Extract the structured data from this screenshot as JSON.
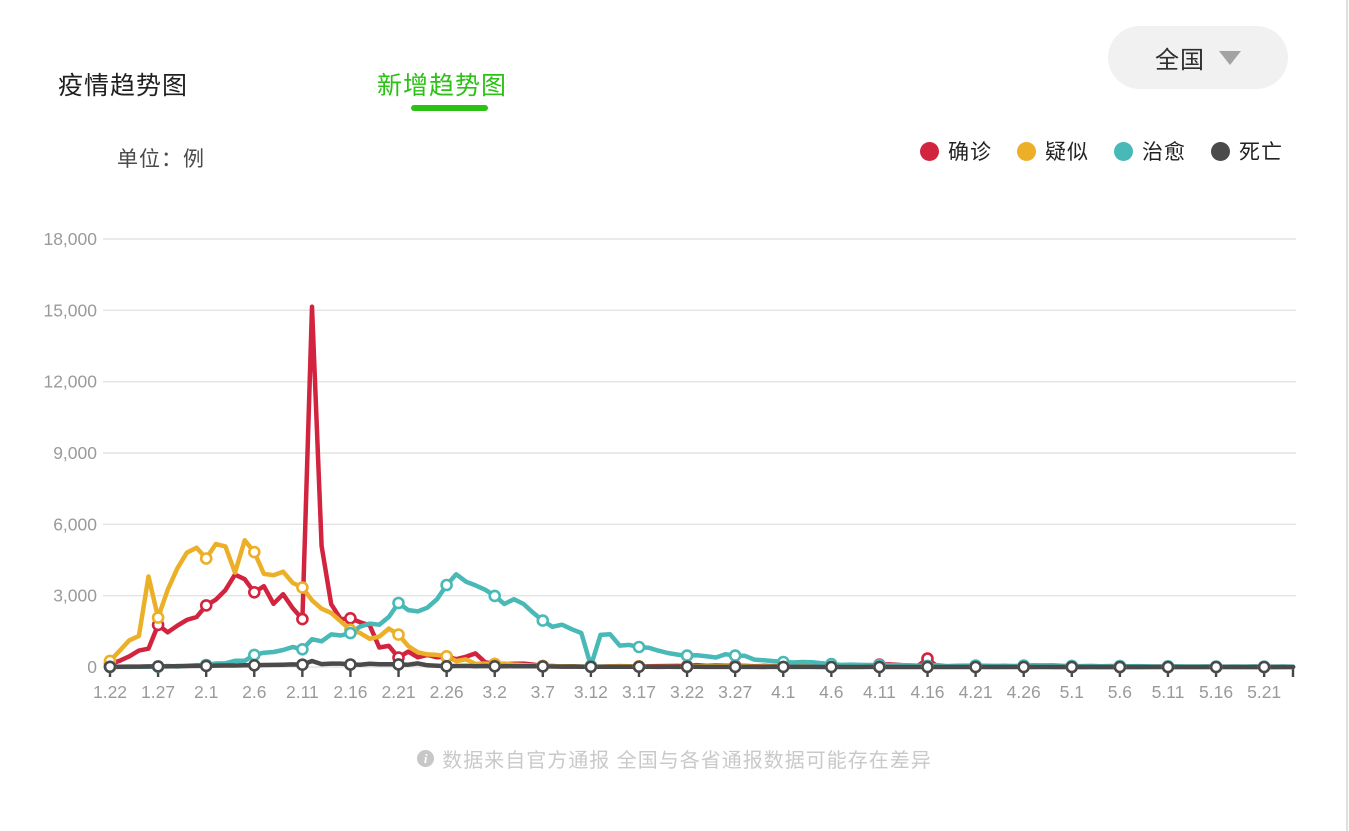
{
  "header": {
    "tabs": [
      {
        "label": "疫情趋势图",
        "active": false
      },
      {
        "label": "新增趋势图",
        "active": true
      }
    ],
    "region_selector": {
      "label": "全国",
      "icon": "chevron-down"
    }
  },
  "unit_label": "单位：例",
  "legend": {
    "items": [
      {
        "label": "确诊",
        "color": "#d2243f"
      },
      {
        "label": "疑似",
        "color": "#ecaf28"
      },
      {
        "label": "治愈",
        "color": "#48b9b6"
      },
      {
        "label": "死亡",
        "color": "#4a4a4a"
      }
    ]
  },
  "footer": {
    "icon_glyph": "i",
    "note": "数据来自官方通报 全国与各省通报数据可能存在差异"
  },
  "chart_data": {
    "type": "line",
    "title": "新增趋势图",
    "unit": "例",
    "ylim": [
      0,
      18000
    ],
    "yticks": [
      0,
      3000,
      6000,
      9000,
      12000,
      15000,
      18000
    ],
    "ytick_labels": [
      "0",
      "3,000",
      "6,000",
      "9,000",
      "12,000",
      "15,000",
      "18,000"
    ],
    "grid": "horizontal",
    "legend_position": "top-right",
    "marker_every": 5,
    "x_tick_labels": [
      "1.22",
      "1.27",
      "2.1",
      "2.6",
      "2.11",
      "2.16",
      "2.21",
      "2.26",
      "3.2",
      "3.7",
      "3.12",
      "3.17",
      "3.22",
      "3.27",
      "4.1",
      "4.6",
      "4.11",
      "4.16",
      "4.21",
      "4.26",
      "5.1",
      "5.6",
      "5.11",
      "5.16",
      "5.21"
    ],
    "dates": [
      "1.22",
      "1.23",
      "1.24",
      "1.25",
      "1.26",
      "1.27",
      "1.28",
      "1.29",
      "1.30",
      "1.31",
      "2.1",
      "2.2",
      "2.3",
      "2.4",
      "2.5",
      "2.6",
      "2.7",
      "2.8",
      "2.9",
      "2.10",
      "2.11",
      "2.12",
      "2.13",
      "2.14",
      "2.15",
      "2.16",
      "2.17",
      "2.18",
      "2.19",
      "2.20",
      "2.21",
      "2.22",
      "2.23",
      "2.24",
      "2.25",
      "2.26",
      "2.27",
      "2.28",
      "2.29",
      "3.1",
      "3.2",
      "3.3",
      "3.4",
      "3.5",
      "3.6",
      "3.7",
      "3.8",
      "3.9",
      "3.10",
      "3.11",
      "3.12",
      "3.13",
      "3.14",
      "3.15",
      "3.16",
      "3.17",
      "3.18",
      "3.19",
      "3.20",
      "3.21",
      "3.22",
      "3.23",
      "3.24",
      "3.25",
      "3.26",
      "3.27",
      "3.28",
      "3.29",
      "3.30",
      "3.31",
      "4.1",
      "4.2",
      "4.3",
      "4.4",
      "4.5",
      "4.6",
      "4.7",
      "4.8",
      "4.9",
      "4.10",
      "4.11",
      "4.12",
      "4.13",
      "4.14",
      "4.15",
      "4.16",
      "4.17",
      "4.18",
      "4.19",
      "4.20",
      "4.21",
      "4.22",
      "4.23",
      "4.24",
      "4.25",
      "4.26",
      "4.27",
      "4.28",
      "4.29",
      "4.30",
      "5.1",
      "5.2",
      "5.3",
      "5.4",
      "5.5",
      "5.6",
      "5.7",
      "5.8",
      "5.9",
      "5.10",
      "5.11",
      "5.12",
      "5.13",
      "5.14",
      "5.15",
      "5.16",
      "5.17",
      "5.18",
      "5.19",
      "5.20",
      "5.21",
      "5.22",
      "5.23",
      "5.24"
    ],
    "series": [
      {
        "name": "确诊",
        "color": "#d2243f",
        "values": [
          131,
          259,
          444,
          688,
          769,
          1771,
          1459,
          1737,
          1982,
          2102,
          2590,
          2829,
          3235,
          3887,
          3694,
          3143,
          3399,
          2656,
          3062,
          2478,
          2015,
          15152,
          5090,
          2641,
          2009,
          2048,
          1886,
          1749,
          820,
          889,
          397,
          648,
          409,
          508,
          406,
          433,
          327,
          427,
          573,
          202,
          125,
          119,
          139,
          143,
          99,
          44,
          40,
          19,
          24,
          15,
          8,
          11,
          20,
          16,
          21,
          13,
          34,
          39,
          41,
          46,
          39,
          78,
          47,
          67,
          55,
          54,
          45,
          31,
          48,
          36,
          35,
          31,
          19,
          30,
          39,
          32,
          62,
          63,
          42,
          46,
          99,
          108,
          89,
          46,
          46,
          352,
          26,
          16,
          12,
          11,
          30,
          10,
          6,
          12,
          11,
          3,
          6,
          22,
          4,
          12,
          1,
          2,
          3,
          1,
          2,
          2,
          1,
          1,
          14,
          17,
          1,
          7,
          3,
          4,
          8,
          5,
          7,
          6,
          5,
          2,
          4,
          2,
          3,
          7
        ]
      },
      {
        "name": "疑似",
        "color": "#ecaf28",
        "values": [
          257,
          680,
          1118,
          1309,
          3806,
          2077,
          3248,
          4148,
          4812,
          5019,
          4562,
          5173,
          5072,
          3971,
          5328,
          4833,
          3916,
          3859,
          4008,
          3536,
          3342,
          2807,
          2450,
          2277,
          1918,
          1563,
          1432,
          1185,
          1277,
          1614,
          1361,
          882,
          620,
          530,
          508,
          452,
          248,
          318,
          132,
          141,
          129,
          143,
          102,
          80,
          58,
          36,
          32,
          31,
          33,
          17,
          10,
          16,
          26,
          41,
          29,
          31,
          23,
          14,
          19,
          11,
          12,
          35,
          33,
          44,
          30,
          27,
          28,
          22,
          19,
          26,
          24,
          23,
          29,
          26,
          22,
          12,
          19,
          20,
          23,
          34,
          12,
          9,
          10,
          34,
          38,
          32,
          21,
          27,
          28,
          37,
          26,
          22,
          19,
          15,
          9,
          13,
          10,
          8,
          10,
          5,
          5,
          6,
          9,
          6,
          4,
          6,
          4,
          3,
          2,
          4,
          3,
          2,
          3,
          2,
          2,
          1,
          2,
          2,
          1,
          1,
          1,
          2,
          2,
          1
        ]
      },
      {
        "name": "治愈",
        "color": "#48b9b6",
        "values": [
          0,
          6,
          3,
          11,
          9,
          12,
          43,
          21,
          47,
          72,
          85,
          147,
          157,
          262,
          261,
          510,
          600,
          632,
          716,
          842,
          744,
          1171,
          1081,
          1373,
          1323,
          1425,
          1701,
          1824,
          1779,
          2109,
          2690,
          2395,
          2340,
          2495,
          2850,
          3450,
          3900,
          3590,
          3430,
          3250,
          2990,
          2650,
          2850,
          2650,
          2280,
          1950,
          1690,
          1780,
          1590,
          1430,
          50,
          1350,
          1380,
          900,
          930,
          840,
          810,
          690,
          590,
          520,
          480,
          490,
          450,
          400,
          540,
          480,
          470,
          310,
          280,
          250,
          210,
          190,
          210,
          200,
          160,
          120,
          90,
          100,
          90,
          85,
          80,
          75,
          80,
          70,
          57,
          48,
          79,
          38,
          51,
          58,
          63,
          56,
          46,
          54,
          43,
          58,
          74,
          68,
          73,
          52,
          46,
          39,
          46,
          32,
          41,
          36,
          28,
          36,
          26,
          21,
          28,
          26,
          22,
          23,
          25,
          16,
          15,
          23,
          18,
          26,
          14,
          16,
          22,
          13
        ]
      },
      {
        "name": "死亡",
        "color": "#4a4a4a",
        "values": [
          8,
          8,
          16,
          15,
          24,
          26,
          26,
          38,
          43,
          46,
          45,
          57,
          64,
          65,
          73,
          73,
          86,
          89,
          97,
          108,
          97,
          254,
          121,
          143,
          142,
          105,
          98,
          136,
          114,
          118,
          109,
          97,
          150,
          71,
          52,
          29,
          44,
          47,
          35,
          42,
          31,
          38,
          31,
          30,
          28,
          27,
          22,
          17,
          22,
          11,
          7,
          13,
          10,
          14,
          13,
          11,
          8,
          3,
          7,
          6,
          9,
          7,
          4,
          6,
          5,
          3,
          5,
          4,
          1,
          7,
          6,
          4,
          4,
          3,
          1,
          0,
          2,
          2,
          1,
          3,
          0,
          0,
          1,
          0,
          0,
          0,
          0,
          0,
          0,
          0,
          0,
          0,
          0,
          0,
          0,
          0,
          0,
          0,
          0,
          0,
          0,
          0,
          0,
          0,
          0,
          0,
          0,
          0,
          0,
          0,
          0,
          0,
          0,
          0,
          0,
          0,
          0,
          0,
          0,
          0,
          0,
          0,
          0,
          0
        ]
      }
    ]
  }
}
